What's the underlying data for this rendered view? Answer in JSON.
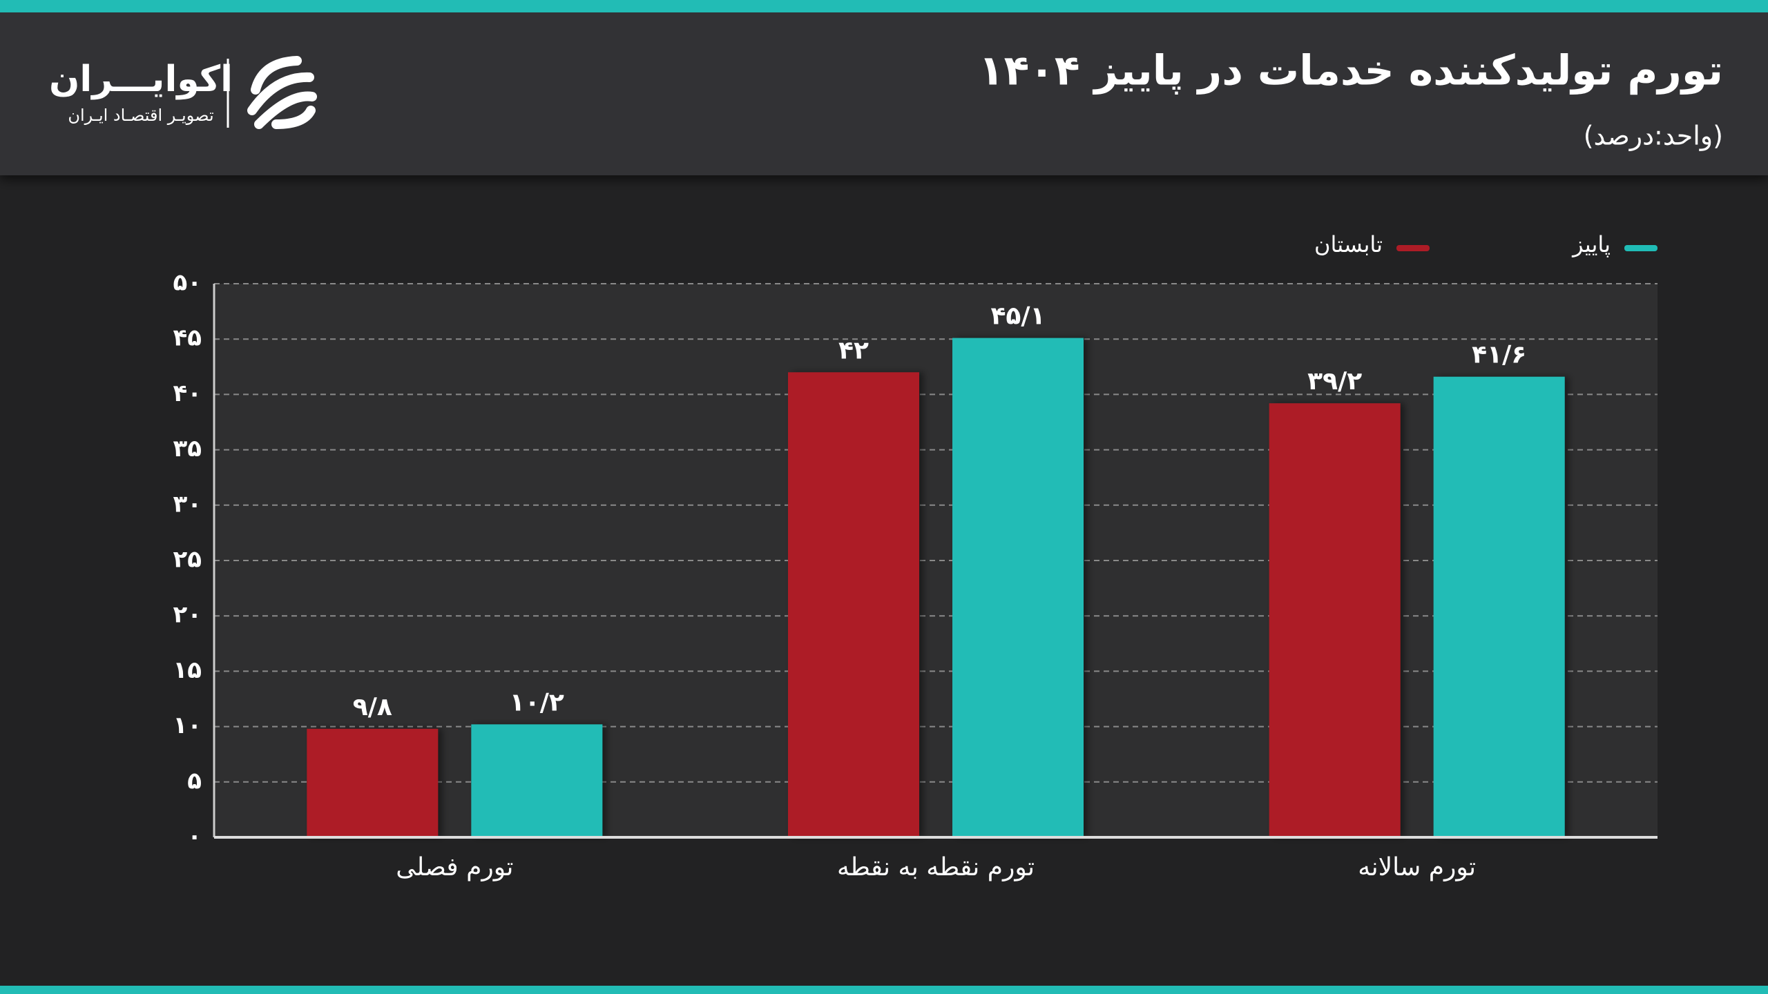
{
  "brand": {
    "name": "اکوایـــران",
    "tagline": "تصویـر اقتصـاد ایـران"
  },
  "chart_data": {
    "type": "bar",
    "title": "تورم تولیدکننده خدمات در پاییز ۱۴۰۴",
    "subtitle": "(واحد:درصد)",
    "categories": [
      "تورم فصلی",
      "تورم نقطه به نقطه",
      "تورم سالانه"
    ],
    "series": [
      {
        "name": "تابستان",
        "color": "#ad1c26",
        "values": [
          9.8,
          42,
          39.2
        ],
        "value_labels": [
          "۹/۸",
          "۴۲",
          "۳۹/۲"
        ]
      },
      {
        "name": "پاییز",
        "color": "#20bcb6",
        "values": [
          10.2,
          45.1,
          41.6
        ],
        "value_labels": [
          "۱۰/۲",
          "۴۵/۱",
          "۴۱/۶"
        ]
      }
    ],
    "ylim": [
      0,
      50
    ],
    "yticks": [
      {
        "value": 0,
        "label": "۰"
      },
      {
        "value": 5,
        "label": "۵"
      },
      {
        "value": 10,
        "label": "۱۰"
      },
      {
        "value": 15,
        "label": "۱۵"
      },
      {
        "value": 20,
        "label": "۲۰"
      },
      {
        "value": 25,
        "label": "۲۵"
      },
      {
        "value": 30,
        "label": "۳۰"
      },
      {
        "value": 35,
        "label": "۳۵"
      },
      {
        "value": 40,
        "label": "۴۰"
      },
      {
        "value": 45,
        "label": "۴۵"
      },
      {
        "value": 50,
        "label": "۵۰"
      }
    ],
    "grid": true
  }
}
